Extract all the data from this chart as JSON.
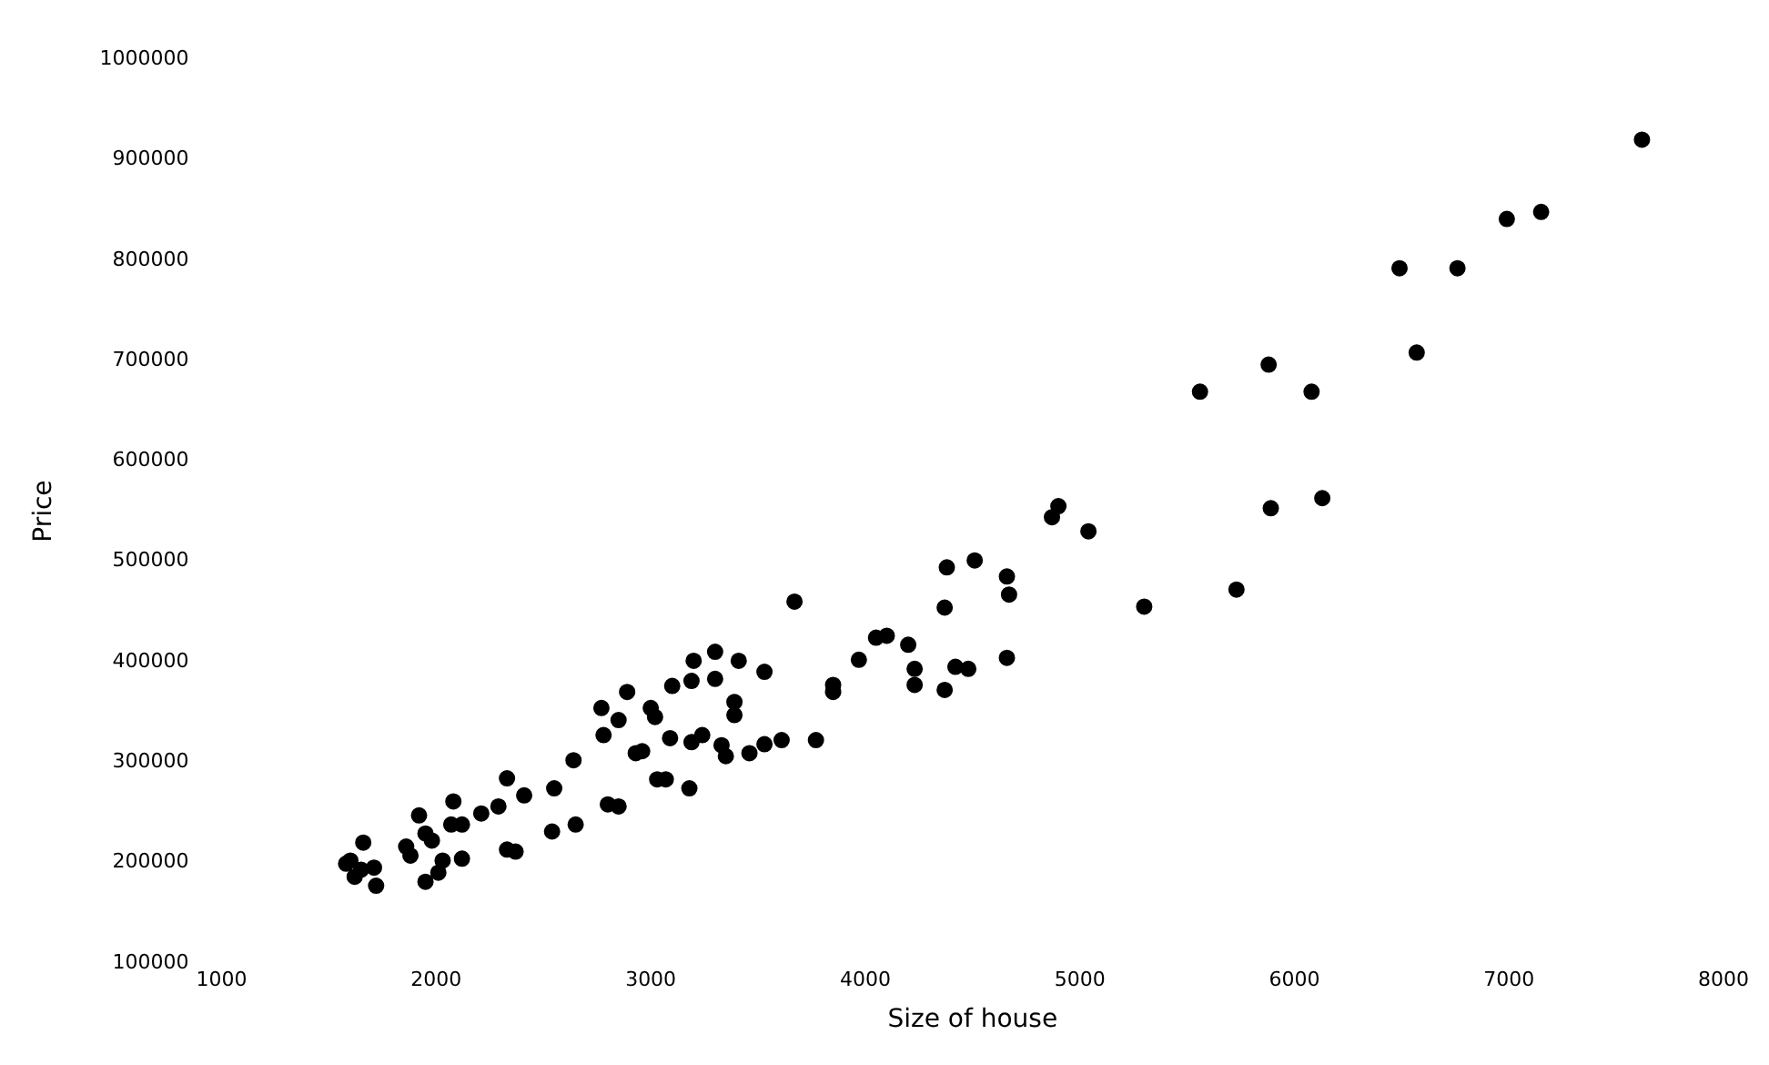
{
  "chart_data": {
    "type": "scatter",
    "xlabel": "Size of house",
    "ylabel": "Price",
    "xlim": [
      1000,
      8000
    ],
    "xticks": [
      1000,
      2000,
      3000,
      4000,
      5000,
      6000,
      7000,
      8000
    ],
    "ylim": [
      100000,
      1000000
    ],
    "yticks": [
      100000,
      200000,
      300000,
      400000,
      500000,
      600000,
      700000,
      800000,
      900000,
      1000000
    ],
    "grid": false,
    "legend": false,
    "marker": "circle",
    "series": [
      {
        "color": "#000000",
        "x": [
          7620,
          7150,
          6990,
          6490,
          6760,
          6570,
          5560,
          5880,
          6080,
          6130,
          5890,
          4900,
          4870,
          5040,
          4380,
          4510,
          4660,
          4670,
          5730,
          5300,
          4370,
          4660,
          3670,
          4050,
          4100,
          4200,
          3970,
          4230,
          4230,
          4370,
          4420,
          4480,
          3850,
          3850,
          3770,
          3610,
          3530,
          3460,
          3330,
          3350,
          3240,
          3190,
          3090,
          3070,
          3030,
          3180,
          2960,
          3000,
          3020,
          3100,
          3190,
          3300,
          3200,
          3300,
          3410,
          3530,
          3390,
          3390,
          2890,
          2770,
          2850,
          2780,
          2930,
          2850,
          2800,
          2640,
          2550,
          2540,
          2650,
          2330,
          2330,
          2370,
          2080,
          2410,
          2290,
          2210,
          2120,
          2070,
          1920,
          1950,
          1980,
          1860,
          1880,
          2030,
          2120,
          2010,
          1950,
          1660,
          1600,
          1580,
          1650,
          1620,
          1720,
          1710
        ],
        "values": [
          920000,
          848000,
          841000,
          792000,
          792000,
          708000,
          669000,
          696000,
          669000,
          563000,
          553000,
          555000,
          544000,
          530000,
          494000,
          501000,
          485000,
          467000,
          472000,
          455000,
          454000,
          404000,
          460000,
          424000,
          426000,
          417000,
          402000,
          393000,
          377000,
          372000,
          395000,
          393000,
          377000,
          370000,
          322000,
          322000,
          318000,
          309000,
          317000,
          306000,
          327000,
          320000,
          324000,
          283000,
          283000,
          274000,
          311000,
          354000,
          345000,
          376000,
          381000,
          383000,
          401000,
          410000,
          401000,
          390000,
          360000,
          347000,
          370000,
          354000,
          342000,
          327000,
          309000,
          256000,
          258000,
          302000,
          274000,
          231000,
          238000,
          284000,
          213000,
          211000,
          261000,
          267000,
          256000,
          249000,
          238000,
          238000,
          247000,
          229000,
          222000,
          216000,
          207000,
          202000,
          204000,
          190000,
          181000,
          220000,
          202000,
          199000,
          193000,
          186000,
          177000,
          195000
        ]
      }
    ]
  }
}
